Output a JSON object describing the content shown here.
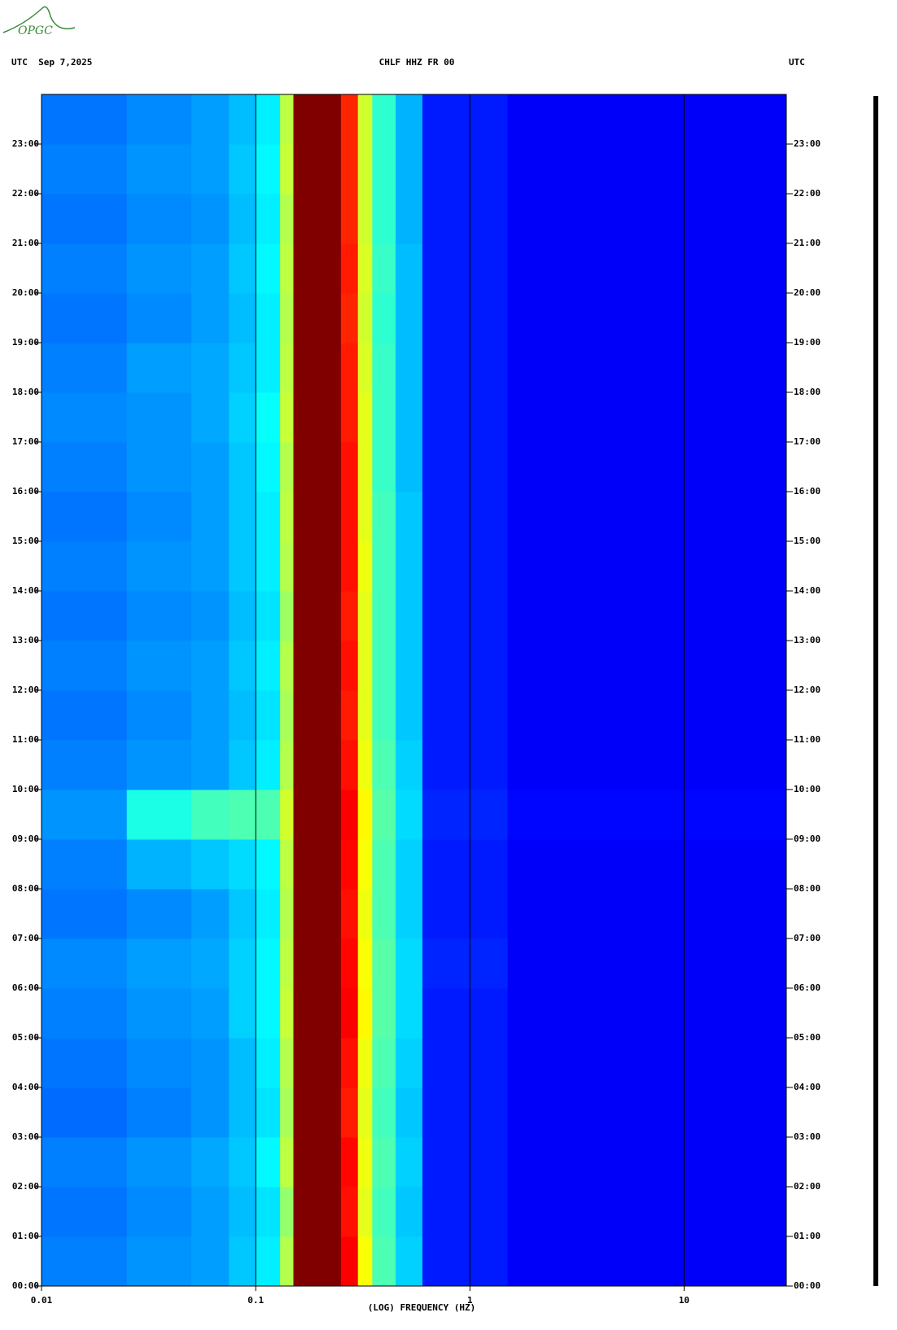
{
  "chart_data": {
    "type": "spectrogram",
    "logo": "OPGC",
    "title_left": "UTC  Sep 7,2025",
    "title": "CHLF HHZ FR 00",
    "title_right": "UTC",
    "xlabel": "(LOG) FREQUENCY (HZ)",
    "xscale": "log",
    "xlim": [
      0.01,
      30
    ],
    "xticks": [
      {
        "value": 0.01,
        "label": "0.01"
      },
      {
        "value": 0.1,
        "label": "0.1"
      },
      1,
      10
    ],
    "ylim": [
      0,
      24
    ],
    "yticks": [
      {
        "value": 0,
        "label": "00:00"
      },
      {
        "value": 1,
        "label": "01:00"
      },
      {
        "value": 2,
        "label": "02:00"
      },
      {
        "value": 3,
        "label": "03:00"
      },
      {
        "value": 4,
        "label": "04:00"
      },
      {
        "value": 5,
        "label": "05:00"
      },
      {
        "value": 6,
        "label": "06:00"
      },
      {
        "value": 7,
        "label": "07:00"
      },
      {
        "value": 8,
        "label": "08:00"
      },
      {
        "value": 9,
        "label": "09:00"
      },
      {
        "value": 10,
        "label": "10:00"
      },
      {
        "value": 11,
        "label": "11:00"
      },
      {
        "value": 12,
        "label": "12:00"
      },
      {
        "value": 13,
        "label": "13:00"
      },
      {
        "value": 14,
        "label": "14:00"
      },
      {
        "value": 15,
        "label": "15:00"
      },
      {
        "value": 16,
        "label": "16:00"
      },
      {
        "value": 17,
        "label": "17:00"
      },
      {
        "value": 18,
        "label": "18:00"
      },
      {
        "value": 19,
        "label": "19:00"
      },
      {
        "value": 20,
        "label": "20:00"
      },
      {
        "value": 21,
        "label": "21:00"
      },
      {
        "value": 22,
        "label": "22:00"
      },
      {
        "value": 23,
        "label": "23:00"
      }
    ],
    "grid": true,
    "x_edges": [
      0.01,
      0.025,
      0.05,
      0.075,
      0.1,
      0.13,
      0.15,
      0.25,
      0.3,
      0.35,
      0.45,
      0.6,
      1.5,
      30
    ],
    "z": [
      [
        0.25,
        0.27,
        0.28,
        0.32,
        0.36,
        0.55,
        1,
        0.88,
        0.62,
        0.45,
        0.33,
        0.15,
        0.12
      ],
      [
        0.24,
        0.26,
        0.28,
        0.31,
        0.35,
        0.52,
        1,
        0.86,
        0.6,
        0.44,
        0.32,
        0.15,
        0.12
      ],
      [
        0.25,
        0.27,
        0.29,
        0.32,
        0.37,
        0.56,
        1,
        0.87,
        0.61,
        0.45,
        0.33,
        0.15,
        0.12
      ],
      [
        0.23,
        0.25,
        0.27,
        0.31,
        0.35,
        0.54,
        1,
        0.85,
        0.6,
        0.44,
        0.32,
        0.15,
        0.12
      ],
      [
        0.24,
        0.26,
        0.27,
        0.31,
        0.36,
        0.55,
        1,
        0.86,
        0.61,
        0.45,
        0.33,
        0.15,
        0.12
      ],
      [
        0.25,
        0.27,
        0.28,
        0.33,
        0.37,
        0.57,
        1,
        0.88,
        0.63,
        0.46,
        0.34,
        0.15,
        0.12
      ],
      [
        0.26,
        0.28,
        0.29,
        0.33,
        0.37,
        0.56,
        1,
        0.87,
        0.62,
        0.46,
        0.34,
        0.16,
        0.12
      ],
      [
        0.24,
        0.26,
        0.28,
        0.32,
        0.36,
        0.55,
        1,
        0.86,
        0.61,
        0.45,
        0.33,
        0.15,
        0.12
      ],
      [
        0.25,
        0.3,
        0.32,
        0.34,
        0.37,
        0.56,
        1,
        0.87,
        0.62,
        0.45,
        0.33,
        0.15,
        0.12
      ],
      [
        0.27,
        0.4,
        0.44,
        0.45,
        0.45,
        0.58,
        1,
        0.88,
        0.63,
        0.46,
        0.34,
        0.16,
        0.13
      ],
      [
        0.25,
        0.27,
        0.28,
        0.32,
        0.36,
        0.55,
        1,
        0.86,
        0.61,
        0.45,
        0.33,
        0.15,
        0.12
      ],
      [
        0.24,
        0.26,
        0.28,
        0.31,
        0.35,
        0.54,
        1,
        0.85,
        0.6,
        0.44,
        0.32,
        0.15,
        0.12
      ],
      [
        0.25,
        0.27,
        0.28,
        0.32,
        0.36,
        0.55,
        1,
        0.86,
        0.6,
        0.44,
        0.32,
        0.15,
        0.12
      ],
      [
        0.24,
        0.26,
        0.27,
        0.31,
        0.35,
        0.53,
        1,
        0.85,
        0.6,
        0.44,
        0.32,
        0.15,
        0.12
      ],
      [
        0.25,
        0.27,
        0.28,
        0.32,
        0.36,
        0.55,
        1,
        0.86,
        0.61,
        0.44,
        0.32,
        0.15,
        0.12
      ],
      [
        0.24,
        0.26,
        0.28,
        0.32,
        0.36,
        0.56,
        1,
        0.86,
        0.6,
        0.44,
        0.32,
        0.15,
        0.12
      ],
      [
        0.25,
        0.27,
        0.28,
        0.32,
        0.37,
        0.55,
        1,
        0.86,
        0.6,
        0.43,
        0.31,
        0.15,
        0.12
      ],
      [
        0.26,
        0.27,
        0.29,
        0.33,
        0.38,
        0.57,
        1,
        0.85,
        0.6,
        0.43,
        0.31,
        0.15,
        0.12
      ],
      [
        0.25,
        0.28,
        0.29,
        0.32,
        0.36,
        0.56,
        1,
        0.85,
        0.59,
        0.43,
        0.31,
        0.15,
        0.12
      ],
      [
        0.24,
        0.26,
        0.28,
        0.31,
        0.36,
        0.55,
        1,
        0.84,
        0.58,
        0.42,
        0.31,
        0.15,
        0.12
      ],
      [
        0.25,
        0.27,
        0.28,
        0.32,
        0.37,
        0.56,
        1,
        0.85,
        0.59,
        0.43,
        0.31,
        0.15,
        0.12
      ],
      [
        0.24,
        0.26,
        0.27,
        0.31,
        0.36,
        0.55,
        1,
        0.84,
        0.58,
        0.42,
        0.3,
        0.15,
        0.12
      ],
      [
        0.25,
        0.27,
        0.28,
        0.32,
        0.37,
        0.57,
        1,
        0.84,
        0.58,
        0.42,
        0.3,
        0.15,
        0.12
      ],
      [
        0.24,
        0.26,
        0.28,
        0.31,
        0.36,
        0.56,
        1,
        0.84,
        0.58,
        0.42,
        0.3,
        0.15,
        0.12
      ]
    ]
  }
}
